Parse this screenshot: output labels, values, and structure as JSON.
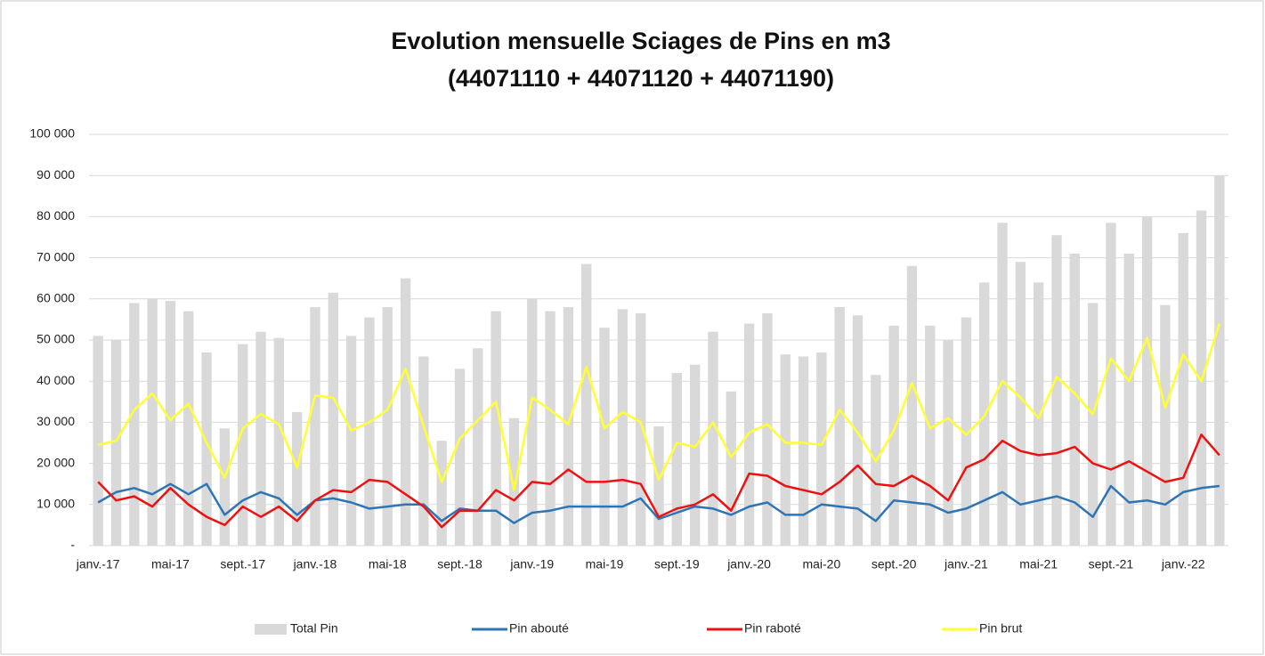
{
  "chart_data": {
    "type": "combo",
    "title": "Evolution mensuelle Sciages de Pins en m3",
    "subtitle": "(44071110 + 44071120 + 44071190)",
    "categories": [
      "janv.-17",
      null,
      null,
      null,
      "mai-17",
      null,
      null,
      null,
      "sept.-17",
      null,
      null,
      null,
      "janv.-18",
      null,
      null,
      null,
      "mai-18",
      null,
      null,
      null,
      "sept.-18",
      null,
      null,
      null,
      "janv.-19",
      null,
      null,
      null,
      "mai-19",
      null,
      null,
      null,
      "sept.-19",
      null,
      null,
      null,
      "janv.-20",
      null,
      null,
      null,
      "mai-20",
      null,
      null,
      null,
      "sept.-20",
      null,
      null,
      null,
      "janv.-21",
      null,
      null,
      null,
      "mai-21",
      null,
      null,
      null,
      "sept.-21",
      null,
      null,
      null,
      "janv.-22",
      null,
      null
    ],
    "series": [
      {
        "name": "Total Pin",
        "type": "bar",
        "color": "#d9d9d9",
        "values": [
          51000,
          50000,
          59000,
          60000,
          59500,
          57000,
          47000,
          28500,
          49000,
          52000,
          50500,
          32500,
          58000,
          61500,
          51000,
          55500,
          58000,
          65000,
          46000,
          25500,
          43000,
          48000,
          57000,
          31000,
          60000,
          57000,
          58000,
          68500,
          53000,
          57500,
          56500,
          29000,
          42000,
          44000,
          52000,
          37500,
          54000,
          56500,
          46500,
          46000,
          47000,
          58000,
          56000,
          41500,
          53500,
          68000,
          53500,
          50000,
          55500,
          64000,
          78500,
          69000,
          64000,
          75500,
          71000,
          59000,
          78500,
          71000,
          80000,
          58500,
          76000,
          81500,
          90000
        ]
      },
      {
        "name": "Pin abouté",
        "type": "line",
        "color": "#2e75b6",
        "values": [
          10500,
          13000,
          14000,
          12500,
          15000,
          12500,
          15000,
          7500,
          11000,
          13000,
          11500,
          7500,
          11000,
          11500,
          10500,
          9000,
          9500,
          10000,
          10000,
          6000,
          9000,
          8500,
          8500,
          5500,
          8000,
          8500,
          9500,
          9500,
          9500,
          9500,
          11500,
          6500,
          8000,
          9500,
          9000,
          7500,
          9500,
          10500,
          7500,
          7500,
          10000,
          9500,
          9000,
          6000,
          11000,
          10500,
          10000,
          8000,
          9000,
          11000,
          13000,
          10000,
          11000,
          12000,
          10500,
          7000,
          14500,
          10500,
          11000,
          10000,
          13000,
          14000,
          14500
        ]
      },
      {
        "name": "Pin raboté",
        "type": "line",
        "color": "#ee1111",
        "values": [
          15500,
          11000,
          12000,
          9500,
          14000,
          10000,
          7000,
          5000,
          9500,
          7000,
          9500,
          6000,
          11000,
          13500,
          13000,
          16000,
          15500,
          12500,
          9500,
          4500,
          8500,
          8500,
          13500,
          11000,
          15500,
          15000,
          18500,
          15500,
          15500,
          16000,
          15000,
          7000,
          9000,
          10000,
          12500,
          8500,
          17500,
          17000,
          14500,
          13500,
          12500,
          15500,
          19500,
          15000,
          14500,
          17000,
          14500,
          11000,
          19000,
          21000,
          25500,
          23000,
          22000,
          22500,
          24000,
          20000,
          18500,
          20500,
          18000,
          15500,
          16500,
          27000,
          22000
        ]
      },
      {
        "name": "Pin brut",
        "type": "line",
        "color": "#ffff33",
        "values": [
          24500,
          25500,
          33000,
          37000,
          30500,
          34500,
          25000,
          16500,
          28500,
          32000,
          29500,
          19000,
          36500,
          36000,
          28000,
          30000,
          33000,
          43000,
          29000,
          15500,
          26000,
          30500,
          35000,
          13500,
          36000,
          33000,
          29500,
          43500,
          28500,
          32500,
          30000,
          16000,
          25000,
          24000,
          30000,
          21500,
          27500,
          29500,
          25000,
          25000,
          24500,
          33000,
          27500,
          20500,
          28000,
          39500,
          28500,
          31000,
          27000,
          31500,
          40000,
          36000,
          31000,
          41000,
          37000,
          32000,
          45500,
          40000,
          50500,
          33500,
          46500,
          40000,
          54000
        ]
      }
    ],
    "ylim": [
      0,
      100000
    ],
    "yticks": [
      {
        "value": 0,
        "label": "-"
      },
      {
        "value": 10000,
        "label": "10 000"
      },
      {
        "value": 20000,
        "label": "20 000"
      },
      {
        "value": 30000,
        "label": "30 000"
      },
      {
        "value": 40000,
        "label": "40 000"
      },
      {
        "value": 50000,
        "label": "50 000"
      },
      {
        "value": 60000,
        "label": "60 000"
      },
      {
        "value": 70000,
        "label": "70 000"
      },
      {
        "value": 80000,
        "label": "80 000"
      },
      {
        "value": 90000,
        "label": "90 000"
      },
      {
        "value": 100000,
        "label": "100 000"
      }
    ],
    "grid": true,
    "legend": "bottom"
  }
}
